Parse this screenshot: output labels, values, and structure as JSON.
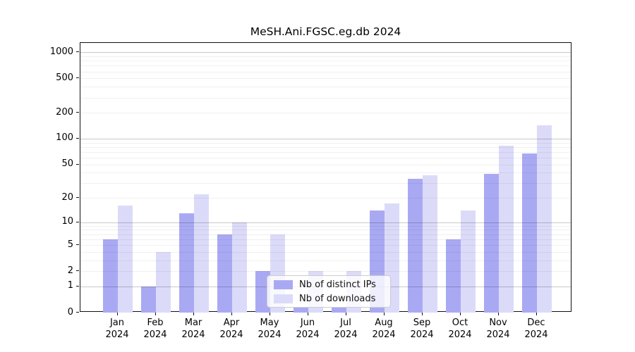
{
  "title": "MeSH.Ani.FGSC.eg.db 2024",
  "chart_data": {
    "type": "bar",
    "title": "MeSH.Ani.FGSC.eg.db 2024",
    "categories": [
      "Jan",
      "Feb",
      "Mar",
      "Apr",
      "May",
      "Jun",
      "Jul",
      "Aug",
      "Sep",
      "Oct",
      "Nov",
      "Dec"
    ],
    "year": "2024",
    "series": [
      {
        "name": "Nb of distinct IPs",
        "color": "#a9a9f3",
        "values": [
          6,
          1,
          13,
          7,
          2,
          0,
          0,
          14,
          34,
          6,
          39,
          67
        ]
      },
      {
        "name": "Nb of downloads",
        "color": "#dbdbf9",
        "values": [
          16,
          4,
          22,
          10,
          7,
          2,
          2,
          17,
          37,
          14,
          82,
          143
        ]
      }
    ],
    "y_scale": "log1p",
    "y_ticks": [
      1000,
      500,
      200,
      100,
      50,
      20,
      10,
      5,
      2,
      1,
      0
    ],
    "major_gridlines": [
      1,
      10,
      100,
      1000
    ],
    "ylim": [
      0,
      1280
    ],
    "grid": true,
    "legend_position": "lower-center",
    "xlabel": "",
    "ylabel": ""
  }
}
